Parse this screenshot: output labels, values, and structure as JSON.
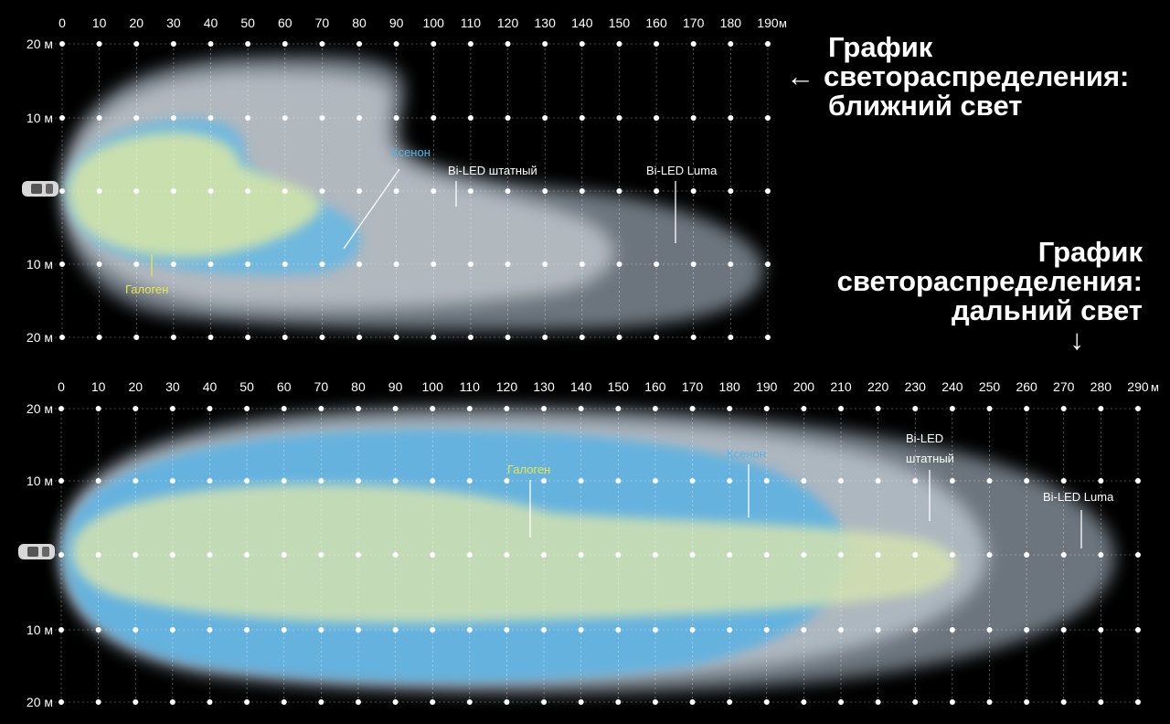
{
  "colors": {
    "background": "#000000",
    "halogen": "#e8e64a",
    "xenon": "#5ab4e6",
    "bi_led": "#c8cdd2",
    "bi_led_luma": "#9aa3ab",
    "grid": "#ffffff"
  },
  "low_beam": {
    "title_lines": [
      "График",
      "светораспределения:",
      "ближний свет"
    ],
    "arrow": "←",
    "x_ticks": [
      "0",
      "10",
      "20",
      "30",
      "40",
      "50",
      "60",
      "70",
      "80",
      "90",
      "100",
      "110",
      "120",
      "130",
      "140",
      "150",
      "160",
      "170",
      "180",
      "190"
    ],
    "x_unit": "м",
    "y_ticks": [
      "20 м",
      "10 м",
      "",
      "10 м",
      "20 м"
    ],
    "labels": {
      "xenon": "Ксенон",
      "bi_led_std": "Bi-LED штатный",
      "bi_led_luma": "Bi-LED Luma",
      "halogen": "Галоген"
    }
  },
  "high_beam": {
    "title_lines": [
      "График",
      "светораспределения:",
      "дальний свет"
    ],
    "arrow": "↓",
    "x_ticks": [
      "0",
      "10",
      "20",
      "30",
      "40",
      "50",
      "60",
      "70",
      "80",
      "90",
      "100",
      "110",
      "120",
      "130",
      "140",
      "150",
      "160",
      "170",
      "180",
      "190",
      "200",
      "210",
      "220",
      "230",
      "240",
      "250",
      "260",
      "270",
      "280",
      "290"
    ],
    "x_unit": "м",
    "y_ticks": [
      "20 м",
      "10 м",
      "",
      "10 м",
      "20 м"
    ],
    "labels": {
      "halogen": "Галоген",
      "xenon": "Ксенон",
      "bi_led_std_1": "Bi-LED",
      "bi_led_std_2": "штатный",
      "bi_led_luma": "Bi-LED Luma"
    }
  }
}
